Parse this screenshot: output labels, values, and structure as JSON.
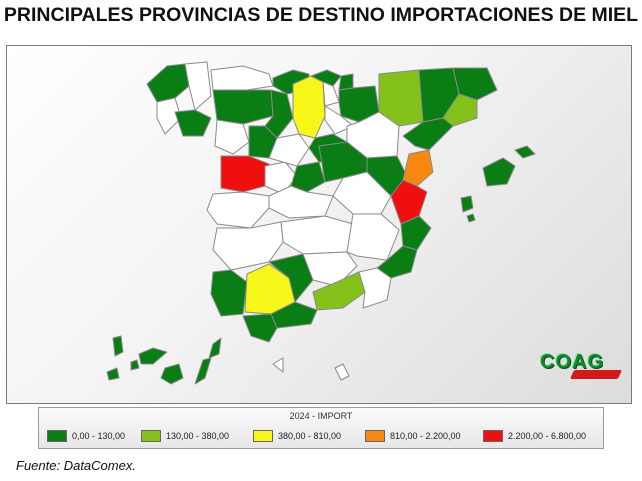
{
  "title": "PRINCIPALES PROVINCIAS DE DESTINO IMPORTACIONES DE MIEL",
  "source": "Fuente: DataComex.",
  "logo": {
    "text": "COAG",
    "subtext": ""
  },
  "legend": {
    "title": "2024 - IMPORT",
    "items": [
      {
        "label": "0,00 - 130,00",
        "color": "#0a7d14"
      },
      {
        "label": "130,00 - 380,00",
        "color": "#84c11a"
      },
      {
        "label": "380,00 - 810,00",
        "color": "#f7f71a"
      },
      {
        "label": "810,00 - 2.200,00",
        "color": "#f7880f"
      },
      {
        "label": "2.200,00 - 6.800,00",
        "color": "#f00f0f"
      }
    ]
  },
  "colors": {
    "none": "#ffffff",
    "c1": "#0a7d14",
    "c2": "#84c11a",
    "c3": "#f7f71a",
    "c4": "#f7880f",
    "c5": "#f00f0f"
  },
  "regions": {
    "highlighted": [
      "Madrid",
      "Valencia",
      "Castellón",
      "Huesca",
      "Burgos",
      "Cádiz",
      "Sevilla",
      "Málaga",
      "Navarra",
      "Lleida"
    ]
  }
}
